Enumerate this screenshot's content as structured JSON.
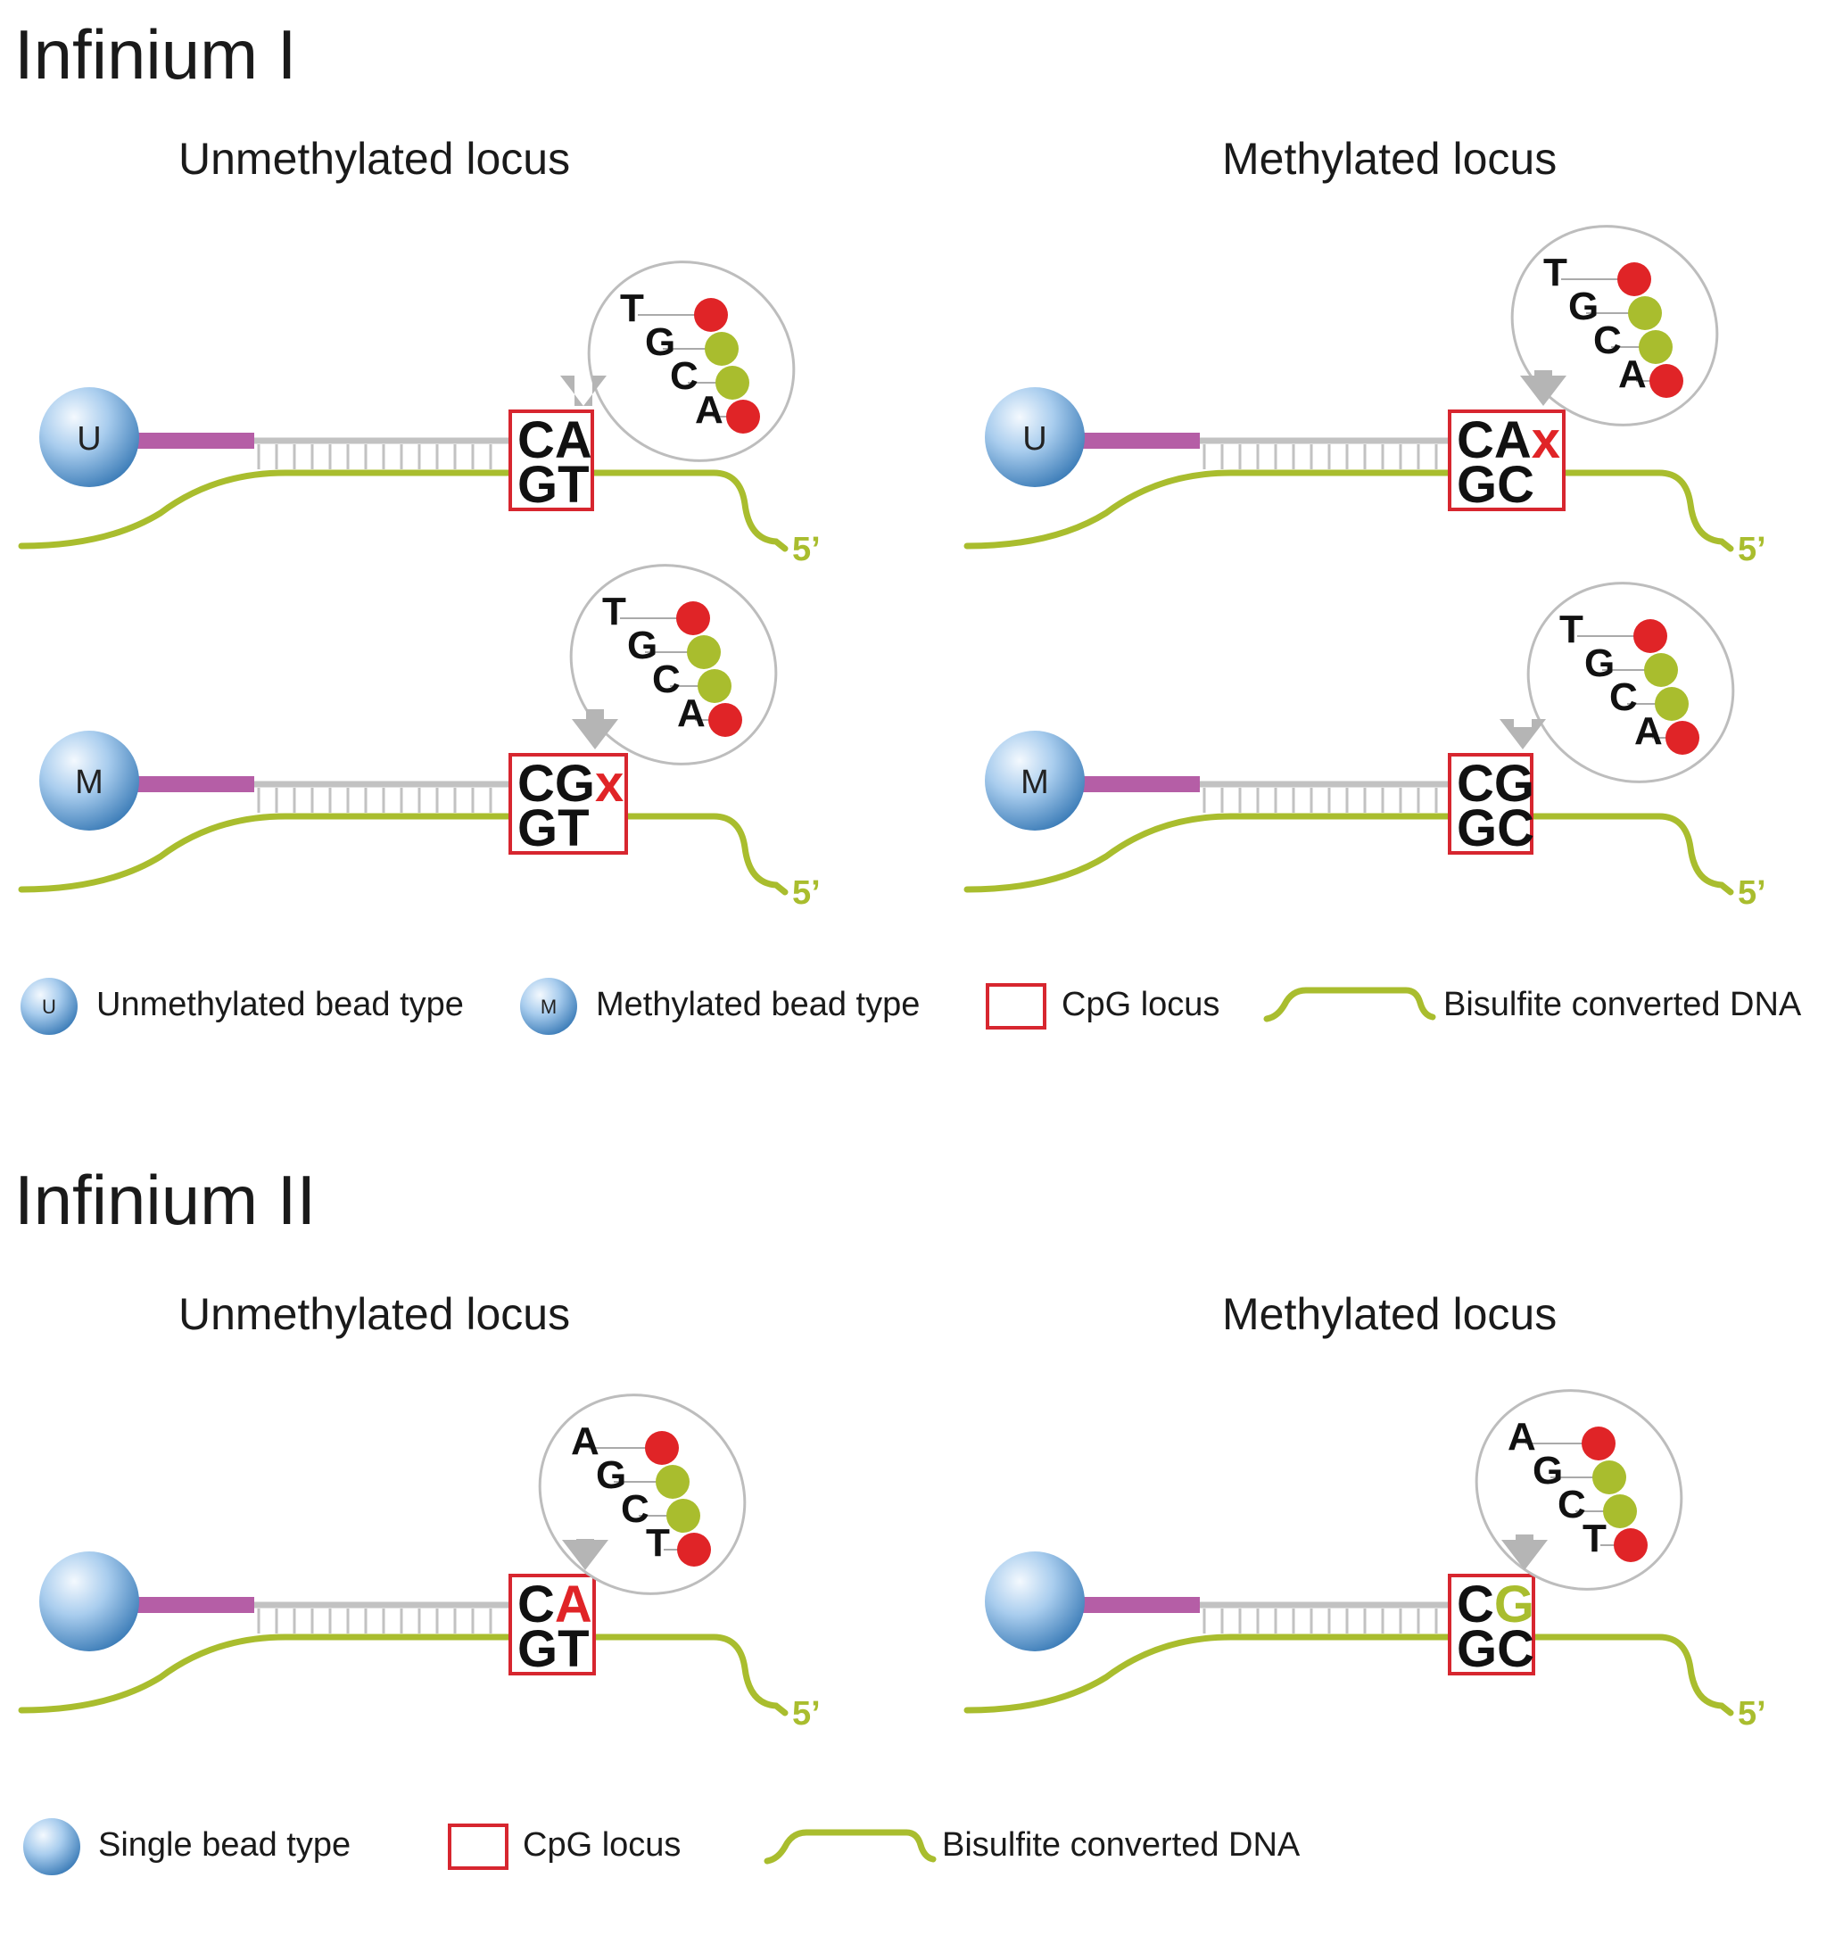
{
  "colors": {
    "dna": "#a9bd2e",
    "linker": "#b55ea6",
    "probe": "#c2c2c2",
    "locus_box": "#d7262f",
    "red": "#e02427",
    "green": "#a9bd2e",
    "bead_light": "#eaf4fc",
    "bead_dark": "#3f7fb8"
  },
  "infinium1": {
    "title": "Infinium I",
    "unmethylated_header": "Unmethylated locus",
    "methylated_header": "Methylated locus",
    "panels": [
      {
        "bead": "U",
        "bases": [
          "T",
          "G",
          "C",
          "A"
        ],
        "top": "CA",
        "top_extra": "",
        "extra_color": "",
        "bottom": "GT",
        "five_prime": "5’"
      },
      {
        "bead": "U",
        "bases": [
          "T",
          "G",
          "C",
          "A"
        ],
        "top": "CA",
        "top_extra": "x",
        "extra_color": "red",
        "bottom": "GC",
        "five_prime": "5’"
      },
      {
        "bead": "M",
        "bases": [
          "T",
          "G",
          "C",
          "A"
        ],
        "top": "CG",
        "top_extra": "x",
        "extra_color": "red",
        "bottom": "GT",
        "five_prime": "5’"
      },
      {
        "bead": "M",
        "bases": [
          "T",
          "G",
          "C",
          "A"
        ],
        "top": "CG",
        "top_extra": "",
        "extra_color": "",
        "bottom": "GC",
        "five_prime": "5’"
      }
    ],
    "legend": {
      "unmethylated_bead_icon": "U",
      "unmethylated_bead": "Unmethylated bead type",
      "methylated_bead_icon": "M",
      "methylated_bead": "Methylated bead type",
      "cpg": "CpG locus",
      "dna": "Bisulfite converted DNA"
    }
  },
  "infinium2": {
    "title": "Infinium II",
    "unmethylated_header": "Unmethylated locus",
    "methylated_header": "Methylated locus",
    "panels": [
      {
        "bead": "",
        "bases": [
          "A",
          "G",
          "C",
          "T"
        ],
        "top": "C",
        "top_extra": "A",
        "extra_color": "red",
        "bottom": "GT",
        "five_prime": "5’"
      },
      {
        "bead": "",
        "bases": [
          "A",
          "G",
          "C",
          "T"
        ],
        "top": "C",
        "top_extra": "G",
        "extra_color": "green",
        "bottom": "GC",
        "five_prime": "5’"
      }
    ],
    "legend": {
      "single_bead": "Single bead type",
      "cpg": "CpG locus",
      "dna": "Bisulfite converted DNA"
    }
  }
}
